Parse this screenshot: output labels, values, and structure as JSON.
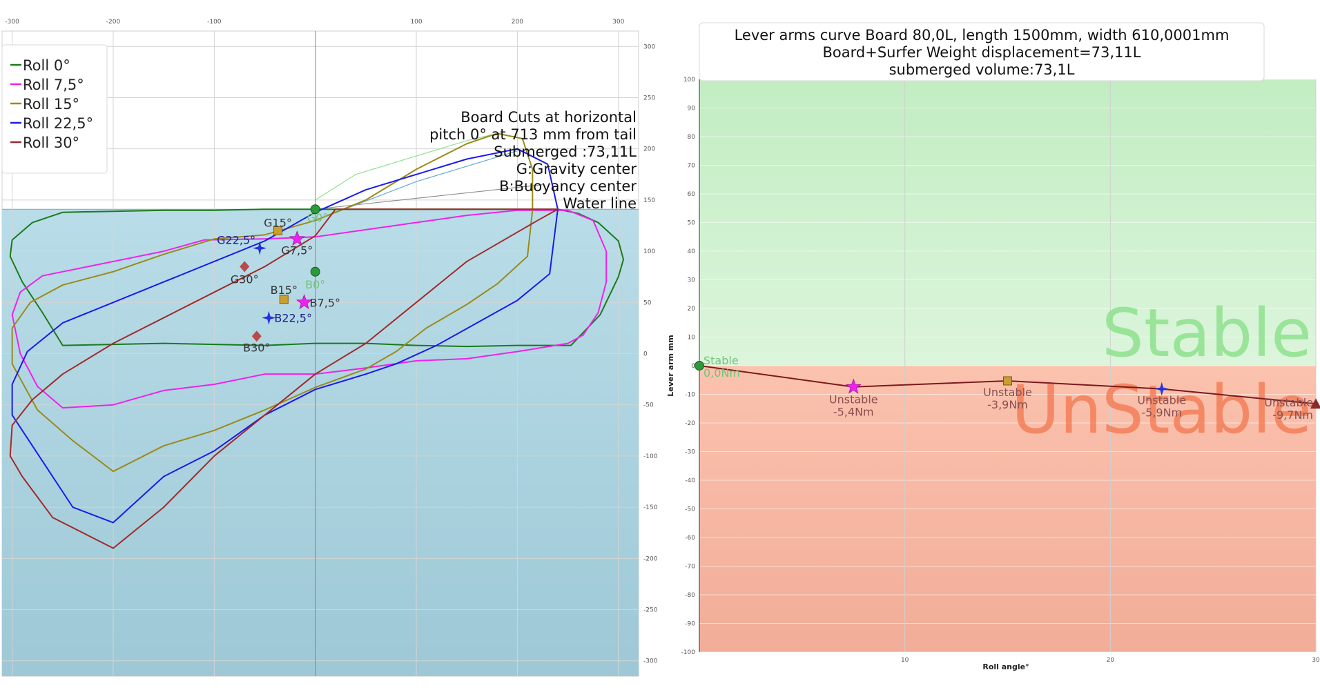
{
  "chart_data": [
    {
      "type": "line",
      "name": "cross-sections",
      "xlim": [
        -310,
        320
      ],
      "ylim": [
        -315,
        315
      ],
      "x_ticks": [
        -300,
        -200,
        -100,
        100,
        200,
        300
      ],
      "x_tick_labels": [
        "-300",
        "-200",
        "-100",
        "100",
        "200",
        "300"
      ],
      "y_ticks": [
        300,
        250,
        200,
        150,
        100,
        50,
        0,
        -50,
        -100,
        -150,
        -200,
        -250,
        -300
      ],
      "y_tick_labels": [
        "300",
        "250",
        "200",
        "150",
        "100",
        "50",
        "0",
        "-50",
        "-100",
        "-150",
        "-200",
        "-250",
        "-300"
      ],
      "water_level": 141,
      "legend": [
        {
          "label": "Roll 0°",
          "color": "#1a7a1a"
        },
        {
          "label": "Roll 7,5°",
          "color": "#ee22ee"
        },
        {
          "label": "Roll 15°",
          "color": "#9a8a1a"
        },
        {
          "label": "Roll 22,5°",
          "color": "#1a1aee"
        },
        {
          "label": "Roll 30°",
          "color": "#a02a2a"
        }
      ],
      "annotation_lines": [
        "Board Cuts at horizontal",
        "pitch 0° at 713 mm from tail",
        "Submerged :73,11L",
        "G:Gravity center",
        "B:Buoyancy center",
        "Water line"
      ],
      "series": [
        {
          "color": "#1a7a1a",
          "points": [
            [
              -300,
              111
            ],
            [
              -280,
              128
            ],
            [
              -250,
              138
            ],
            [
              -200,
              139
            ],
            [
              -150,
              140
            ],
            [
              -100,
              140
            ],
            [
              -50,
              141
            ],
            [
              0,
              141
            ],
            [
              50,
              141
            ],
            [
              100,
              141
            ],
            [
              150,
              141
            ],
            [
              200,
              141
            ],
            [
              240,
              141
            ],
            [
              260,
              137
            ],
            [
              280,
              128
            ],
            [
              300,
              110
            ],
            [
              305,
              92
            ],
            [
              300,
              75
            ],
            [
              282,
              38
            ],
            [
              253,
              8
            ],
            [
              200,
              8
            ],
            [
              150,
              7
            ],
            [
              100,
              8
            ],
            [
              50,
              10
            ],
            [
              0,
              10
            ],
            [
              -50,
              8
            ],
            [
              -100,
              9
            ],
            [
              -150,
              10
            ],
            [
              -200,
              9
            ],
            [
              -250,
              8
            ],
            [
              -270,
              40
            ],
            [
              -290,
              70
            ],
            [
              -302,
              95
            ],
            [
              -300,
              111
            ]
          ]
        },
        {
          "color": "#ee22ee",
          "points": [
            [
              -110,
              111
            ],
            [
              -50,
              112
            ],
            [
              0,
              114
            ],
            [
              50,
              121
            ],
            [
              100,
              128
            ],
            [
              150,
              135
            ],
            [
              200,
              140
            ],
            [
              250,
              140
            ],
            [
              275,
              130
            ],
            [
              288,
              100
            ],
            [
              288,
              70
            ],
            [
              280,
              40
            ],
            [
              265,
              18
            ],
            [
              250,
              10
            ],
            [
              200,
              2
            ],
            [
              150,
              -5
            ],
            [
              100,
              -7
            ],
            [
              50,
              -14
            ],
            [
              0,
              -20
            ],
            [
              -50,
              -20
            ],
            [
              -100,
              -30
            ],
            [
              -150,
              -36
            ],
            [
              -200,
              -50
            ],
            [
              -250,
              -53
            ],
            [
              -275,
              -32
            ],
            [
              -292,
              0
            ],
            [
              -300,
              38
            ],
            [
              -292,
              60
            ],
            [
              -270,
              76
            ],
            [
              -200,
              90
            ],
            [
              -150,
              100
            ],
            [
              -110,
              111
            ]
          ]
        },
        {
          "color": "#9a8a1a",
          "points": [
            [
              -50,
              116
            ],
            [
              0,
              130
            ],
            [
              50,
              150
            ],
            [
              100,
              180
            ],
            [
              150,
              205
            ],
            [
              180,
              215
            ],
            [
              205,
              210
            ],
            [
              215,
              180
            ],
            [
              215,
              140
            ],
            [
              210,
              95
            ],
            [
              180,
              68
            ],
            [
              150,
              48
            ],
            [
              110,
              25
            ],
            [
              80,
              2
            ],
            [
              50,
              -15
            ],
            [
              0,
              -33
            ],
            [
              -50,
              -55
            ],
            [
              -100,
              -75
            ],
            [
              -150,
              -90
            ],
            [
              -200,
              -115
            ],
            [
              -240,
              -85
            ],
            [
              -275,
              -55
            ],
            [
              -300,
              -10
            ],
            [
              -300,
              25
            ],
            [
              -282,
              50
            ],
            [
              -250,
              67
            ],
            [
              -200,
              80
            ],
            [
              -150,
              97
            ],
            [
              -100,
              112
            ],
            [
              -50,
              116
            ]
          ]
        },
        {
          "color": "#1a1aee",
          "points": [
            [
              -50,
              110
            ],
            [
              0,
              138
            ],
            [
              50,
              160
            ],
            [
              100,
              175
            ],
            [
              150,
              190
            ],
            [
              200,
              200
            ],
            [
              230,
              185
            ],
            [
              240,
              141
            ],
            [
              232,
              78
            ],
            [
              200,
              52
            ],
            [
              160,
              30
            ],
            [
              120,
              8
            ],
            [
              80,
              -10
            ],
            [
              50,
              -20
            ],
            [
              0,
              -35
            ],
            [
              -50,
              -60
            ],
            [
              -100,
              -95
            ],
            [
              -150,
              -120
            ],
            [
              -200,
              -165
            ],
            [
              -240,
              -150
            ],
            [
              -270,
              -105
            ],
            [
              -300,
              -60
            ],
            [
              -300,
              -30
            ],
            [
              -285,
              2
            ],
            [
              -250,
              30
            ],
            [
              -200,
              50
            ],
            [
              -150,
              70
            ],
            [
              -100,
              90
            ],
            [
              -50,
              110
            ]
          ]
        },
        {
          "color": "#a02a2a",
          "points": [
            [
              -50,
              85
            ],
            [
              0,
              115
            ],
            [
              20,
              141
            ],
            [
              240,
              141
            ],
            [
              220,
              130
            ],
            [
              150,
              90
            ],
            [
              100,
              50
            ],
            [
              50,
              10
            ],
            [
              0,
              -20
            ],
            [
              -50,
              -60
            ],
            [
              -100,
              -100
            ],
            [
              -150,
              -150
            ],
            [
              -200,
              -190
            ],
            [
              -260,
              -160
            ],
            [
              -290,
              -120
            ],
            [
              -302,
              -100
            ],
            [
              -300,
              -70
            ],
            [
              -280,
              -45
            ],
            [
              -250,
              -20
            ],
            [
              -200,
              10
            ],
            [
              -150,
              35
            ],
            [
              -100,
              60
            ],
            [
              -50,
              85
            ]
          ]
        }
      ],
      "guide_lines": [
        {
          "color": "#90e090",
          "points": [
            [
              0,
              150
            ],
            [
              40,
              175
            ],
            [
              150,
              208
            ],
            [
              180,
              215
            ]
          ]
        },
        {
          "color": "#60a8d8",
          "points": [
            [
              0,
              130
            ],
            [
              100,
              168
            ],
            [
              200,
              198
            ]
          ]
        },
        {
          "color": "#909090",
          "points": [
            [
              0,
              141
            ],
            [
              225,
              165
            ]
          ]
        }
      ],
      "points": [
        {
          "label": "G0°",
          "x": 0,
          "y": 141,
          "marker": "circle",
          "color": "#2a9a3a",
          "label_color": "#6fc47a",
          "anchor": "start",
          "dx": -12,
          "dy": 18
        },
        {
          "label": "G15°",
          "x": -37,
          "y": 120,
          "marker": "square",
          "color": "#c9a030",
          "label_color": "#333333",
          "anchor": "middle",
          "dx": 0,
          "dy": -6
        },
        {
          "label": "G22,5°",
          "x": -55,
          "y": 103,
          "marker": "star4",
          "color": "#2233dd",
          "label_color": "#1a1a88",
          "anchor": "end",
          "dx": -6,
          "dy": -6
        },
        {
          "label": "G7,5°",
          "x": -18,
          "y": 112,
          "marker": "star5",
          "color": "#ee22ee",
          "label_color": "#333333",
          "anchor": "middle",
          "dx": 0,
          "dy": 22
        },
        {
          "label": "G30°",
          "x": -70,
          "y": 85,
          "marker": "diamond",
          "color": "#b84a4a",
          "label_color": "#333333",
          "anchor": "middle",
          "dx": 0,
          "dy": 24
        },
        {
          "label": "B0°",
          "x": 0,
          "y": 80,
          "marker": "circle",
          "color": "#2a9a3a",
          "label_color": "#6fc47a",
          "anchor": "middle",
          "dx": 0,
          "dy": 24
        },
        {
          "label": "B15°",
          "x": -31,
          "y": 53,
          "marker": "square",
          "color": "#c9a030",
          "label_color": "#333333",
          "anchor": "middle",
          "dx": 0,
          "dy": -8
        },
        {
          "label": "B7,5°",
          "x": -11,
          "y": 50,
          "marker": "star5",
          "color": "#ee22ee",
          "label_color": "#333333",
          "anchor": "start",
          "dx": 8,
          "dy": 6
        },
        {
          "label": "B22,5°",
          "x": -46,
          "y": 35,
          "marker": "star4",
          "color": "#2233dd",
          "label_color": "#1a1a88",
          "anchor": "start",
          "dx": 8,
          "dy": 6
        },
        {
          "label": "B30°",
          "x": -58,
          "y": 17,
          "marker": "diamond",
          "color": "#b84a4a",
          "label_color": "#333333",
          "anchor": "middle",
          "dx": 0,
          "dy": 22
        }
      ]
    },
    {
      "type": "line",
      "name": "lever-arms",
      "title_lines": [
        "Lever arms curve Board 80,0L, length 1500mm, width 610,0001mm",
        "Board+Surfer Weight displacement=73,11L",
        "submerged volume:73,1L"
      ],
      "xlabel": "Roll angle°",
      "ylabel": "Lever arm mm",
      "xlim": [
        0,
        30
      ],
      "ylim": [
        -100,
        100
      ],
      "x_ticks": [
        10,
        20,
        30
      ],
      "y_ticks": [
        100,
        90,
        80,
        70,
        60,
        50,
        40,
        30,
        20,
        10,
        0,
        -10,
        -20,
        -30,
        -40,
        -50,
        -60,
        -70,
        -80,
        -90,
        -100
      ],
      "zones": {
        "stable_label": "Stable",
        "unstable_label": "UnStable",
        "stable_color": "#c8f0c8",
        "unstable_color": "#f7b9a2"
      },
      "x": [
        0,
        7.5,
        15,
        22.5,
        30
      ],
      "values": [
        0,
        -7.4,
        -5.3,
        -8.1,
        -13.3
      ],
      "line_color": "#7a1a1a",
      "point_labels": [
        {
          "status": "Stable",
          "value": "0,0Nm",
          "marker": "circle",
          "color": "#2a9a3a",
          "label_color": "#6fc47a",
          "anchor": "start",
          "dx": 6,
          "dy": -2
        },
        {
          "status": "Unstable",
          "value": "-5,4Nm",
          "marker": "star5",
          "color": "#ee22ee",
          "label_color": "#8a5050",
          "anchor": "middle",
          "dx": 0,
          "dy": 24
        },
        {
          "status": "Unstable",
          "value": "-3,9Nm",
          "marker": "square",
          "color": "#c9a030",
          "label_color": "#8a5050",
          "anchor": "middle",
          "dx": 0,
          "dy": 22
        },
        {
          "status": "Unstable",
          "value": "-5,9Nm",
          "marker": "star4",
          "color": "#2233dd",
          "label_color": "#8a5050",
          "anchor": "middle",
          "dx": 0,
          "dy": 22
        },
        {
          "status": "Unstable",
          "value": "-9,7Nm",
          "marker": "triangle",
          "color": "#8a2a2a",
          "label_color": "#8a5050",
          "anchor": "end",
          "dx": -4,
          "dy": 4
        }
      ]
    }
  ]
}
